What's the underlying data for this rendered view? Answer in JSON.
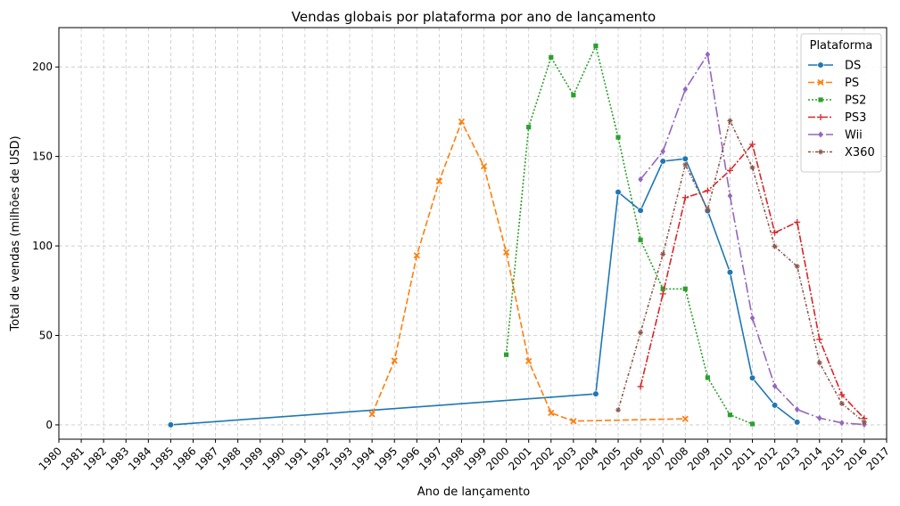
{
  "chart_data": {
    "type": "line",
    "title": "Vendas globais por plataforma por ano de lançamento",
    "xlabel": "Ano de lançamento",
    "ylabel": "Total de vendas (milhões de USD)",
    "xlim": [
      1980,
      2017
    ],
    "ylim": [
      -8,
      222
    ],
    "x_ticks": [
      1980,
      1981,
      1982,
      1983,
      1984,
      1985,
      1986,
      1987,
      1988,
      1989,
      1990,
      1991,
      1992,
      1993,
      1994,
      1995,
      1996,
      1997,
      1998,
      1999,
      2000,
      2001,
      2002,
      2003,
      2004,
      2005,
      2006,
      2007,
      2008,
      2009,
      2010,
      2011,
      2012,
      2013,
      2014,
      2015,
      2016,
      2017
    ],
    "y_ticks": [
      0,
      50,
      100,
      150,
      200
    ],
    "grid": true,
    "legend": {
      "title": "Plataforma",
      "position": "top-right"
    },
    "series": [
      {
        "name": "DS",
        "color": "#1f77b4",
        "dash": "",
        "marker": "circle",
        "x": [
          1985,
          2004,
          2005,
          2006,
          2007,
          2008,
          2009,
          2010,
          2011,
          2012,
          2013
        ],
        "values": [
          0.02,
          17.3,
          130.1,
          119.8,
          147.3,
          148.7,
          119.6,
          85.3,
          26.2,
          11.0,
          1.5
        ]
      },
      {
        "name": "PS",
        "color": "#ff7f0e",
        "dash": "7,3",
        "marker": "x",
        "x": [
          1994,
          1995,
          1996,
          1997,
          1998,
          1999,
          2000,
          2001,
          2002,
          2003,
          2008
        ],
        "values": [
          6.0,
          35.9,
          94.7,
          136.2,
          169.5,
          144.5,
          96.4,
          35.6,
          6.7,
          2.1,
          3.4
        ]
      },
      {
        "name": "PS2",
        "color": "#2ca02c",
        "dash": "2,2",
        "marker": "square",
        "x": [
          2000,
          2001,
          2002,
          2003,
          2004,
          2005,
          2006,
          2007,
          2008,
          2009,
          2010,
          2011
        ],
        "values": [
          39.2,
          166.4,
          205.4,
          184.3,
          211.8,
          160.7,
          103.4,
          76.0,
          76.0,
          26.4,
          5.6,
          0.5
        ]
      },
      {
        "name": "PS3",
        "color": "#d62728",
        "dash": "8,2,2,2",
        "marker": "plus",
        "x": [
          2006,
          2007,
          2008,
          2009,
          2010,
          2011,
          2012,
          2013,
          2014,
          2015,
          2016
        ],
        "values": [
          21.4,
          73.2,
          127.0,
          130.9,
          142.2,
          156.8,
          107.4,
          113.3,
          47.8,
          16.8,
          3.6
        ]
      },
      {
        "name": "Wii",
        "color": "#9467bd",
        "dash": "12,3,2,3",
        "marker": "diamond",
        "x": [
          2006,
          2007,
          2008,
          2009,
          2010,
          2011,
          2012,
          2013,
          2014,
          2015,
          2016
        ],
        "values": [
          137.2,
          152.8,
          187.5,
          207.0,
          128.0,
          59.7,
          21.7,
          8.6,
          3.8,
          1.1,
          0.2
        ]
      },
      {
        "name": "X360",
        "color": "#8c564b",
        "dash": "3,2,1,2",
        "marker": "star",
        "x": [
          2005,
          2006,
          2007,
          2008,
          2009,
          2010,
          2011,
          2012,
          2013,
          2014,
          2015,
          2016
        ],
        "values": [
          8.3,
          51.6,
          95.4,
          145.4,
          120.3,
          170.0,
          143.8,
          99.7,
          88.6,
          34.7,
          11.9,
          1.5
        ]
      }
    ]
  }
}
